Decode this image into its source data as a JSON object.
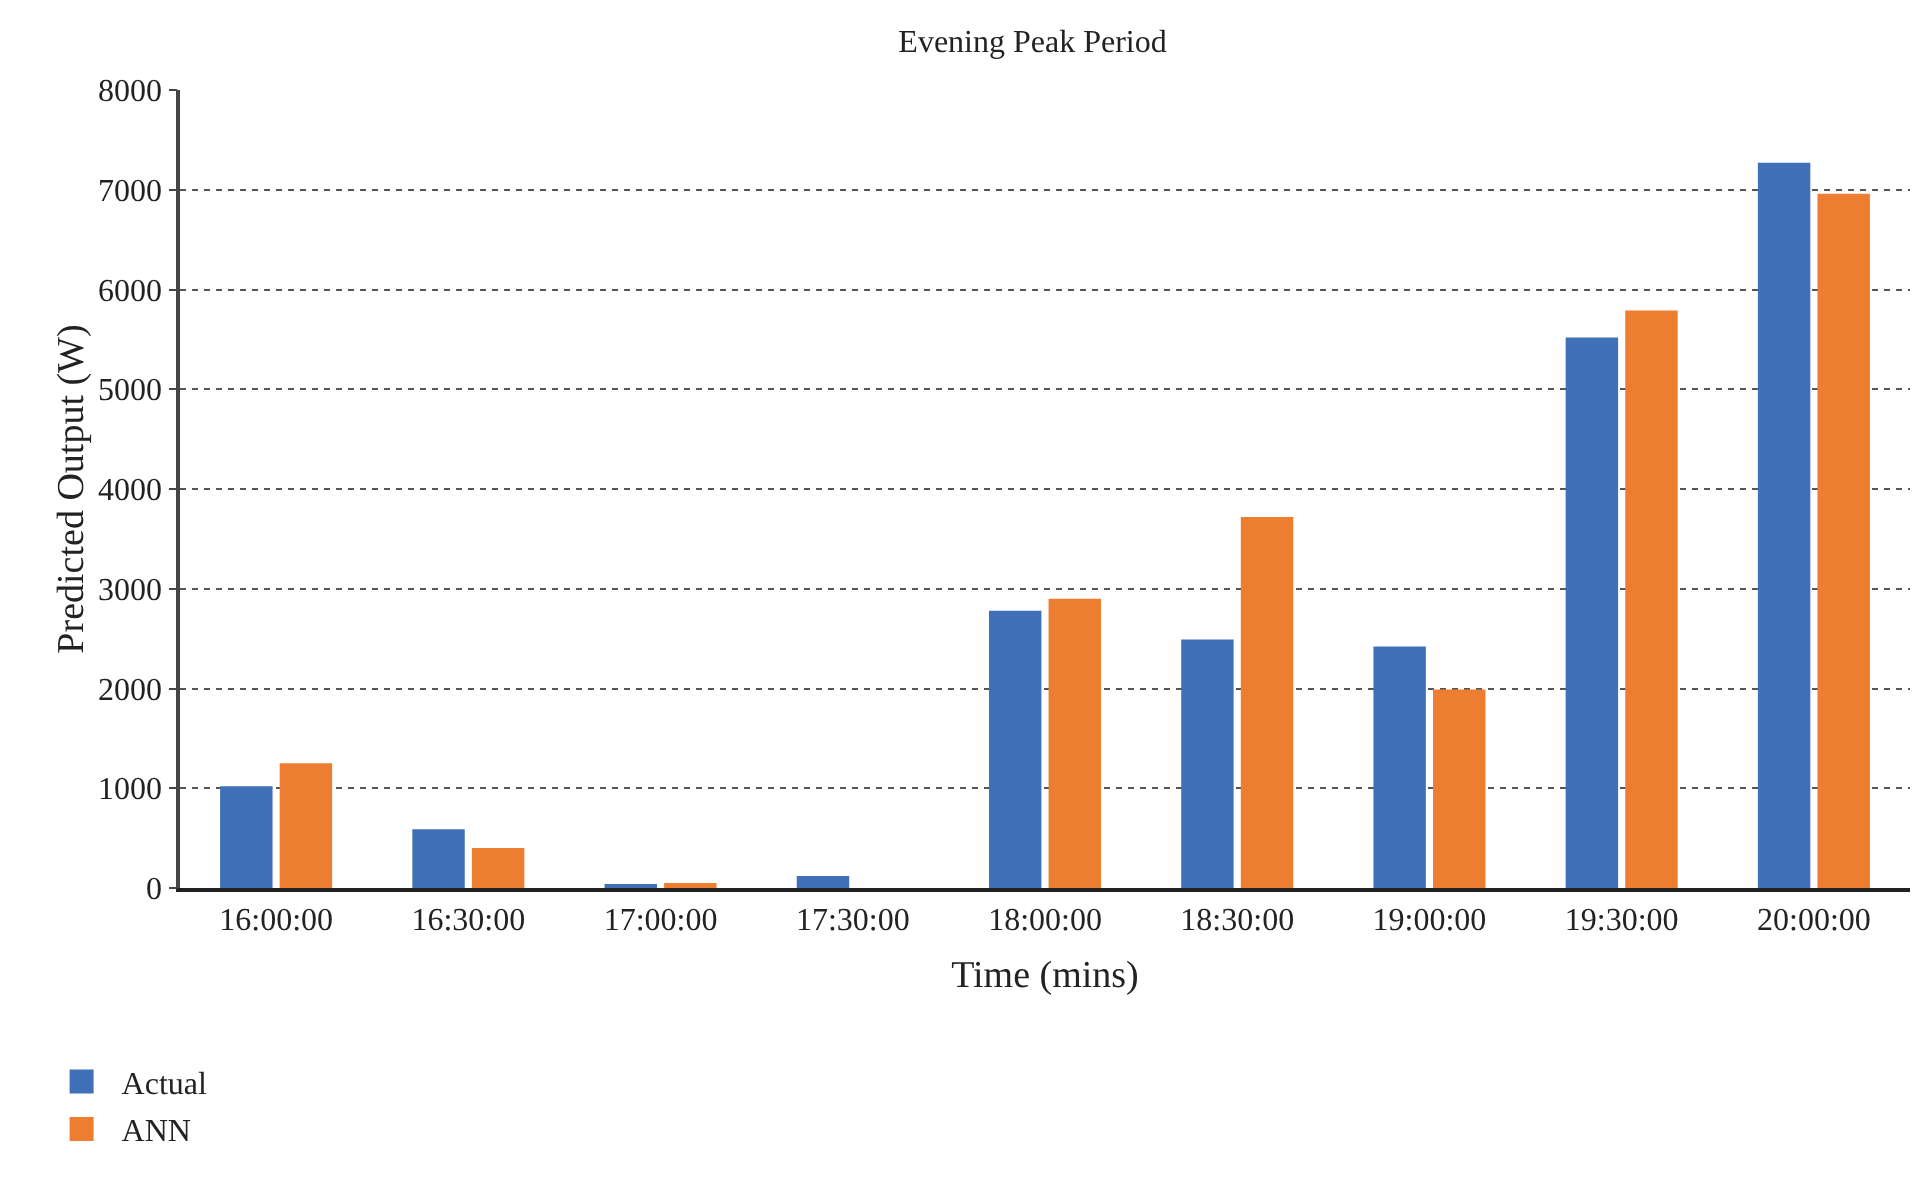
{
  "chart_data": {
    "type": "bar",
    "title": "Evening Peak Period",
    "xlabel": "Time (mins)",
    "ylabel": "Predicted Output (W)",
    "categories": [
      "16:00:00",
      "16:30:00",
      "17:00:00",
      "17:30:00",
      "18:00:00",
      "18:30:00",
      "19:00:00",
      "19:30:00",
      "20:00:00"
    ],
    "series": [
      {
        "name": "Actual",
        "color": "#4070b8",
        "values": [
          1020,
          590,
          30,
          120,
          2780,
          2490,
          2420,
          5520,
          7270
        ]
      },
      {
        "name": "ANN",
        "color": "#ed7d31",
        "values": [
          1250,
          400,
          50,
          0,
          2900,
          3720,
          1990,
          5790,
          6960
        ]
      }
    ],
    "ylim": [
      0,
      8000
    ],
    "yticks": [
      0,
      1000,
      2000,
      3000,
      4000,
      5000,
      6000,
      7000,
      8000
    ],
    "grid": "y",
    "legend": "bottom left"
  }
}
